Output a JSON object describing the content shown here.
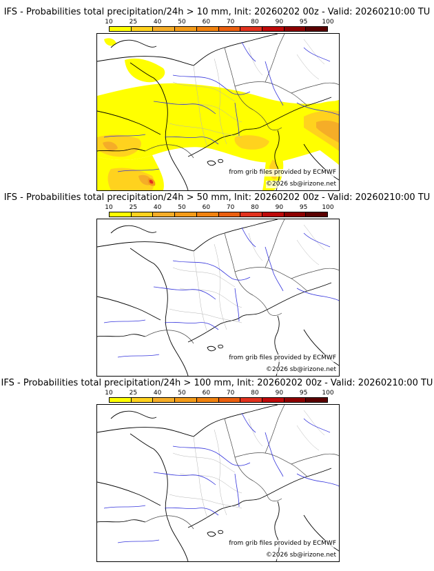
{
  "colorbar": {
    "ticks": [
      "10",
      "25",
      "40",
      "50",
      "60",
      "70",
      "80",
      "90",
      "95",
      "100"
    ],
    "colors": [
      "#ffff00",
      "#ffd21e",
      "#f5ad28",
      "#f39b19",
      "#f0820f",
      "#ea5f0f",
      "#e1321e",
      "#be0a0a",
      "#8c0000",
      "#5a0000"
    ]
  },
  "panels": [
    {
      "title": "IFS - Probabilities total precipitation/24h > 10 mm, Init: 20260202 00z - Valid: 20260210:00 TU",
      "has_rain": true,
      "credit_source": "from grib files provided by ECMWF",
      "credit_copyright": "©2026 sb@irizone.net"
    },
    {
      "title": "IFS - Probabilities total precipitation/24h > 50 mm, Init: 20260202 00z - Valid: 20260210:00 TU",
      "has_rain": false,
      "credit_source": "from grib files provided by ECMWF",
      "credit_copyright": "©2026 sb@irizone.net"
    },
    {
      "title": "IFS - Probabilities total precipitation/24h > 100 mm, Init: 20260202 00z - Valid: 20260210:00 TU",
      "has_rain": false,
      "credit_source": "from grib files provided by ECMWF",
      "credit_copyright": "©2026 sb@irizone.net"
    }
  ],
  "map_colors": {
    "coastline": "#000000",
    "borders": "#444444",
    "regions": "#b4b4b4",
    "rivers": "#3232dc"
  }
}
